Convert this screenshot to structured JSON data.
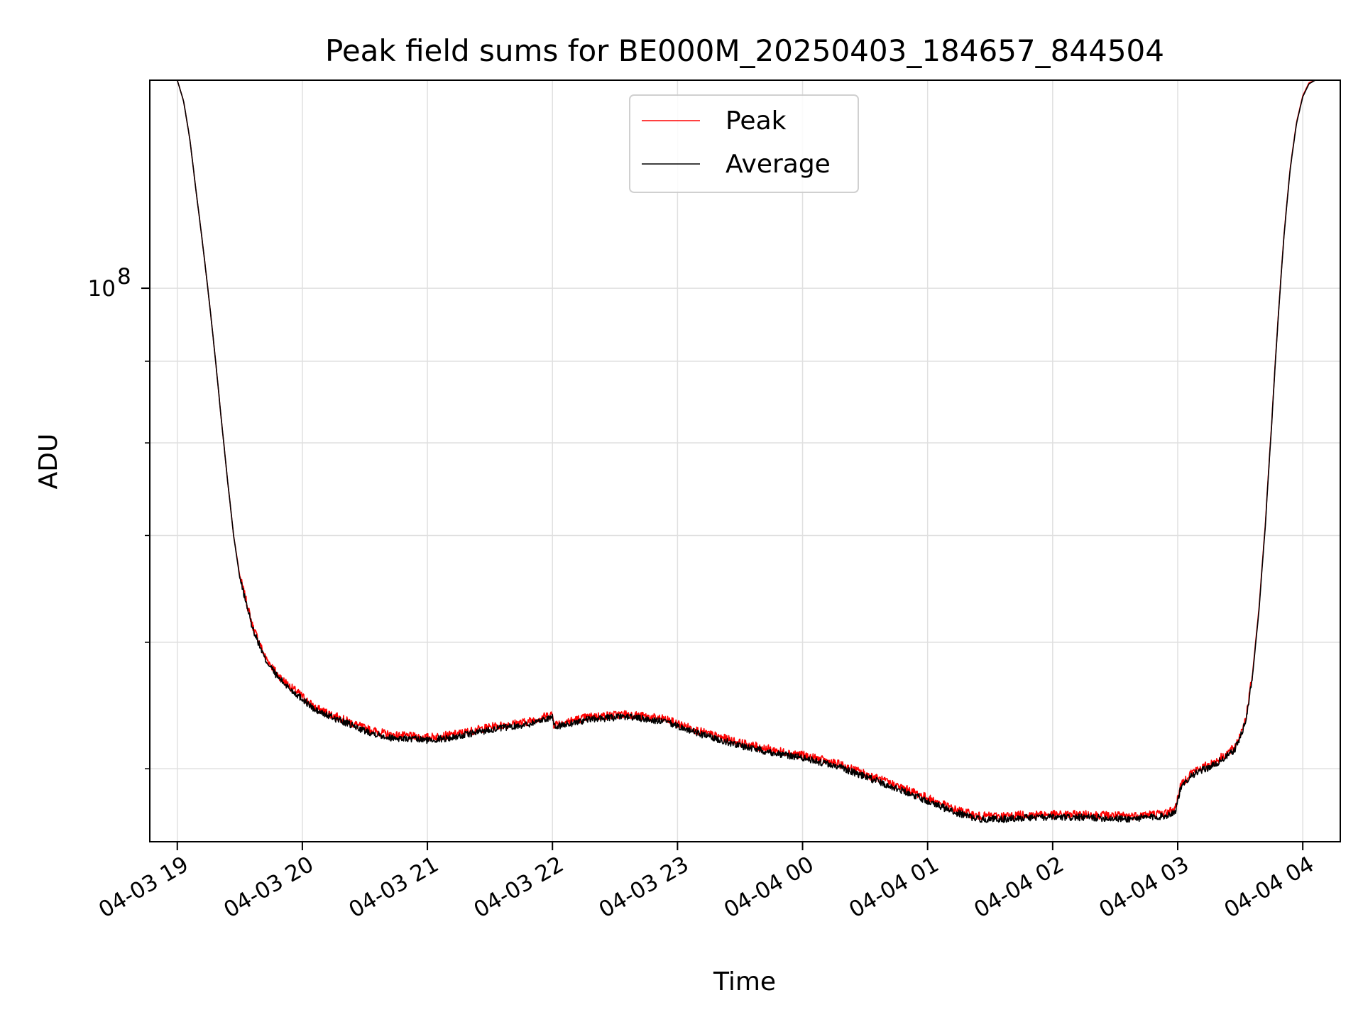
{
  "chart_data": {
    "type": "line",
    "title": "Peak field sums for BE000M_20250403_184657_844504",
    "xlabel": "Time",
    "ylabel": "ADU",
    "y_scale": "log",
    "x_range_hours": [
      18.78,
      28.3
    ],
    "ylim": [
      45000000,
      135000000
    ],
    "grid": true,
    "legend_position": "upper-center",
    "x_ticks": [
      {
        "label": "04-03 19",
        "hour": 19
      },
      {
        "label": "04-03 20",
        "hour": 20
      },
      {
        "label": "04-03 21",
        "hour": 21
      },
      {
        "label": "04-03 22",
        "hour": 22
      },
      {
        "label": "04-03 23",
        "hour": 23
      },
      {
        "label": "04-04 00",
        "hour": 24
      },
      {
        "label": "04-04 01",
        "hour": 25
      },
      {
        "label": "04-04 02",
        "hour": 26
      },
      {
        "label": "04-04 03",
        "hour": 27
      },
      {
        "label": "04-04 04",
        "hour": 28
      }
    ],
    "y_tick_major": {
      "base": "10",
      "exponent": "8",
      "value": 100000000
    },
    "y_minor_ticks": [
      50000000,
      60000000,
      70000000,
      80000000,
      90000000,
      200000000
    ],
    "series": [
      {
        "name": "Peak",
        "color": "#ff0000",
        "x": [
          19.0,
          19.05,
          19.1,
          19.15,
          19.2,
          19.25,
          19.3,
          19.35,
          19.4,
          19.45,
          19.5,
          19.6,
          19.7,
          19.8,
          19.9,
          20.0,
          20.1,
          20.3,
          20.5,
          20.7,
          21.0,
          21.2,
          21.5,
          21.8,
          22.0,
          22.01,
          22.3,
          22.6,
          22.9,
          23.2,
          23.5,
          23.8,
          24.0,
          24.3,
          24.6,
          24.9,
          25.2,
          25.4,
          25.6,
          25.8,
          26.0,
          26.3,
          26.6,
          26.9,
          26.98,
          27.02,
          27.1,
          27.3,
          27.45,
          27.5,
          27.55,
          27.6,
          27.65,
          27.7,
          27.75,
          27.8,
          27.85,
          27.9,
          27.95,
          28.0,
          28.05,
          28.1,
          28.15,
          28.2,
          28.3
        ],
        "y": [
          135000000,
          131000000,
          124000000,
          115000000,
          107000000,
          99000000,
          91000000,
          83000000,
          76000000,
          70000000,
          66000000,
          61500000,
          58800000,
          57300000,
          56300000,
          55500000,
          54600000,
          53800000,
          53000000,
          52500000,
          52300000,
          52500000,
          53100000,
          53500000,
          54100000,
          53300000,
          53900000,
          54100000,
          53700000,
          52700000,
          51900000,
          51300000,
          51000000,
          50300000,
          49300000,
          48300000,
          47200000,
          46700000,
          46700000,
          46800000,
          46800000,
          46800000,
          46700000,
          46900000,
          47200000,
          48700000,
          49700000,
          50500000,
          51500000,
          52500000,
          54000000,
          57500000,
          63000000,
          71000000,
          82000000,
          95000000,
          108000000,
          119000000,
          127000000,
          132000000,
          134500000,
          135000000,
          135000000,
          135000000,
          135000000
        ]
      },
      {
        "name": "Average",
        "color": "#000000",
        "x": [
          19.0,
          19.05,
          19.1,
          19.15,
          19.2,
          19.25,
          19.3,
          19.35,
          19.4,
          19.45,
          19.5,
          19.6,
          19.7,
          19.8,
          19.9,
          20.0,
          20.1,
          20.3,
          20.5,
          20.7,
          21.0,
          21.2,
          21.5,
          21.8,
          22.0,
          22.01,
          22.3,
          22.6,
          22.9,
          23.2,
          23.5,
          23.8,
          24.0,
          24.3,
          24.6,
          24.9,
          25.2,
          25.4,
          25.6,
          25.8,
          26.0,
          26.3,
          26.6,
          26.9,
          26.98,
          27.02,
          27.1,
          27.3,
          27.45,
          27.5,
          27.55,
          27.6,
          27.65,
          27.7,
          27.75,
          27.8,
          27.85,
          27.9,
          27.95,
          28.0,
          28.05,
          28.1,
          28.15,
          28.2,
          28.3
        ],
        "y": [
          135000000,
          131000000,
          124000000,
          115000000,
          107000000,
          99000000,
          91000000,
          83000000,
          76000000,
          70000000,
          65800000,
          61300000,
          58600000,
          57100000,
          56100000,
          55300000,
          54400000,
          53600000,
          52800000,
          52300000,
          52100000,
          52300000,
          52900000,
          53300000,
          53900000,
          53100000,
          53700000,
          53900000,
          53500000,
          52500000,
          51700000,
          51100000,
          50800000,
          50100000,
          49100000,
          48100000,
          47000000,
          46500000,
          46500000,
          46600000,
          46600000,
          46600000,
          46500000,
          46700000,
          47000000,
          48500000,
          49500000,
          50300000,
          51300000,
          52300000,
          53800000,
          57300000,
          62800000,
          70800000,
          81800000,
          94800000,
          107800000,
          118800000,
          126800000,
          131800000,
          134300000,
          135000000,
          135000000,
          135000000,
          135000000
        ]
      }
    ]
  }
}
